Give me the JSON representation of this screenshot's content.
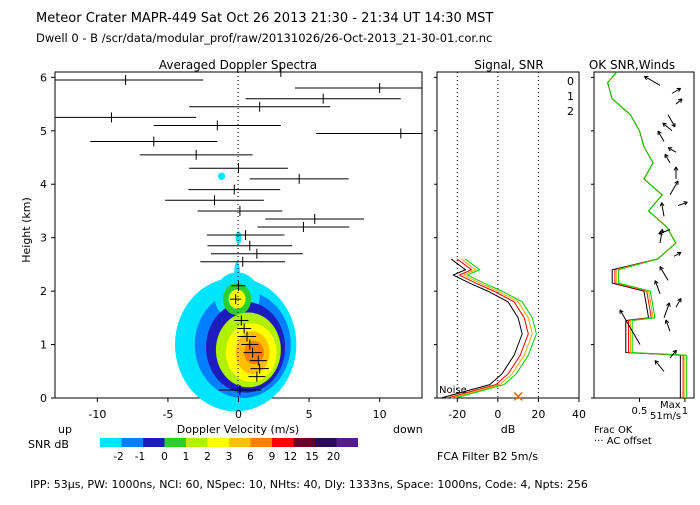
{
  "header": {
    "line1": "Meteor Crater  MAPR-449  Sat Oct 26 2013 21:30 - 21:34 UT 14:30 MST",
    "line2": "Dwell  0 -  B   /scr/data/modular_prof/raw/20131026/26-Oct-2013_21-30-01.cor.nc"
  },
  "panels": {
    "spectra_title": "Averaged Doppler Spectra",
    "signal_title": "Signal, SNR",
    "ok_title": "OK SNR,Winds"
  },
  "chart_data": {
    "type": "profile",
    "y_axis": {
      "label": "Height (km)",
      "range": [
        0,
        6.1
      ],
      "ticks": [
        "0",
        "1",
        "2",
        "3",
        "4",
        "5",
        "6"
      ]
    },
    "spectra_x": {
      "label": "Doppler Velocity (m/s)",
      "range": [
        -13,
        13
      ],
      "ticks": [
        "-10",
        "-5",
        "0",
        "5",
        "10"
      ],
      "left_label": "up",
      "right_label": "down"
    },
    "snr_x": {
      "label": "dB",
      "range": [
        -30,
        40
      ],
      "ticks": [
        "-20",
        "0",
        "20",
        "40"
      ],
      "noise_label": "Noise"
    },
    "frac_x": {
      "label": "Frac OK",
      "range": [
        0,
        1.1
      ],
      "ticks": [
        "0.5",
        "1"
      ],
      "offset_label": "··· AC offset"
    },
    "max_wind": {
      "label": "Max",
      "value": "51m/s"
    },
    "legend": {
      "label": "SNR dB",
      "values": [
        "-2",
        "-1",
        "0",
        "1",
        "2",
        "3",
        "6",
        "9",
        "12",
        "15",
        "20"
      ],
      "colors": [
        "#00e5ff",
        "#0080ff",
        "#1c1cbf",
        "#2bd02b",
        "#b0f000",
        "#ffff00",
        "#ffc000",
        "#ff8000",
        "#ff0000",
        "#6a0028",
        "#2a0a5a",
        "#551a8b"
      ]
    },
    "filter_note": "FCA Filter B2  5m/s",
    "snr_colors": [
      "0",
      "1",
      "2"
    ],
    "snr_color_hex": [
      "#ff0000",
      "#ffa500",
      "#00cc00"
    ],
    "spectra_profile": [
      {
        "h": 0.15,
        "v": 0.1,
        "w": 3.0
      },
      {
        "h": 0.4,
        "v": 1.3,
        "w": 1.2
      },
      {
        "h": 0.55,
        "v": 1.5,
        "w": 1.3
      },
      {
        "h": 0.7,
        "v": 1.4,
        "w": 1.2
      },
      {
        "h": 0.85,
        "v": 1.0,
        "w": 1.3
      },
      {
        "h": 1.0,
        "v": 0.8,
        "w": 1.2
      },
      {
        "h": 1.15,
        "v": 0.6,
        "w": 1.3
      },
      {
        "h": 1.3,
        "v": 0.4,
        "w": 1.0
      },
      {
        "h": 1.45,
        "v": 0.2,
        "w": 1.0
      },
      {
        "h": 1.85,
        "v": -0.2,
        "w": 0.8
      },
      {
        "h": 2.1,
        "v": 0.0,
        "w": 1.0
      },
      {
        "h": 2.55,
        "v": 0.3,
        "w": 6.0
      },
      {
        "h": 2.7,
        "v": 1.3,
        "w": 6.5
      },
      {
        "h": 2.85,
        "v": 0.8,
        "w": 6.0
      },
      {
        "h": 3.05,
        "v": 0.5,
        "w": 5.5
      },
      {
        "h": 3.2,
        "v": 4.6,
        "w": 6.5
      },
      {
        "h": 3.35,
        "v": 5.4,
        "w": 7.0
      },
      {
        "h": 3.5,
        "v": 0.1,
        "w": 6.0
      },
      {
        "h": 3.7,
        "v": -1.7,
        "w": 7.0
      },
      {
        "h": 3.9,
        "v": -0.3,
        "w": 6.5
      },
      {
        "h": 4.1,
        "v": 4.3,
        "w": 7.0
      },
      {
        "h": 4.3,
        "v": 0.0,
        "w": 7.0
      },
      {
        "h": 4.55,
        "v": -3.0,
        "w": 8.0
      },
      {
        "h": 4.8,
        "v": -6.0,
        "w": 9.0
      },
      {
        "h": 4.95,
        "v": 11.5,
        "w": 12.0
      },
      {
        "h": 5.1,
        "v": -1.5,
        "w": 9.0
      },
      {
        "h": 5.25,
        "v": -9.0,
        "w": 12.0
      },
      {
        "h": 5.45,
        "v": 1.5,
        "w": 10.0
      },
      {
        "h": 5.6,
        "v": 6.0,
        "w": 11.0
      },
      {
        "h": 5.8,
        "v": 10.0,
        "w": 12.0
      },
      {
        "h": 5.95,
        "v": -8.0,
        "w": 11.0
      },
      {
        "h": 6.1,
        "v": 3.0,
        "w": 10.0
      }
    ],
    "snr_line": [
      {
        "h": 0.0,
        "db": -28
      },
      {
        "h": 0.25,
        "db": -4
      },
      {
        "h": 0.45,
        "db": 2
      },
      {
        "h": 0.8,
        "db": 8
      },
      {
        "h": 1.2,
        "db": 12
      },
      {
        "h": 1.5,
        "db": 10
      },
      {
        "h": 1.8,
        "db": 5
      },
      {
        "h": 2.0,
        "db": -5
      },
      {
        "h": 2.15,
        "db": -14
      },
      {
        "h": 2.3,
        "db": -22
      },
      {
        "h": 2.4,
        "db": -16
      },
      {
        "h": 2.6,
        "db": -23
      }
    ],
    "frac_ok": [
      {
        "h": 0.0,
        "f": 0.95
      },
      {
        "h": 0.8,
        "f": 0.95
      },
      {
        "h": 0.85,
        "f": 0.35
      },
      {
        "h": 1.45,
        "f": 0.35
      },
      {
        "h": 1.5,
        "f": 0.6
      },
      {
        "h": 2.0,
        "f": 0.55
      },
      {
        "h": 2.15,
        "f": 0.2
      },
      {
        "h": 2.4,
        "f": 0.2
      },
      {
        "h": 2.6,
        "f": 0.7
      },
      {
        "h": 2.9,
        "f": 0.9
      },
      {
        "h": 3.2,
        "f": 0.8
      },
      {
        "h": 3.5,
        "f": 0.6
      },
      {
        "h": 3.8,
        "f": 0.75
      },
      {
        "h": 4.1,
        "f": 0.55
      },
      {
        "h": 4.4,
        "f": 0.65
      },
      {
        "h": 4.7,
        "f": 0.55
      },
      {
        "h": 5.0,
        "f": 0.5
      },
      {
        "h": 5.3,
        "f": 0.4
      },
      {
        "h": 5.6,
        "f": 0.2
      },
      {
        "h": 5.9,
        "f": 0.15
      },
      {
        "h": 6.1,
        "f": 0.25
      }
    ]
  },
  "footer": {
    "params": "IPP: 53μs, PW: 1000ns, NCI: 60, NSpec: 10, NHts: 40, Dly: 1333ns, Space: 1000ns, Code: 4, Npts: 256"
  }
}
